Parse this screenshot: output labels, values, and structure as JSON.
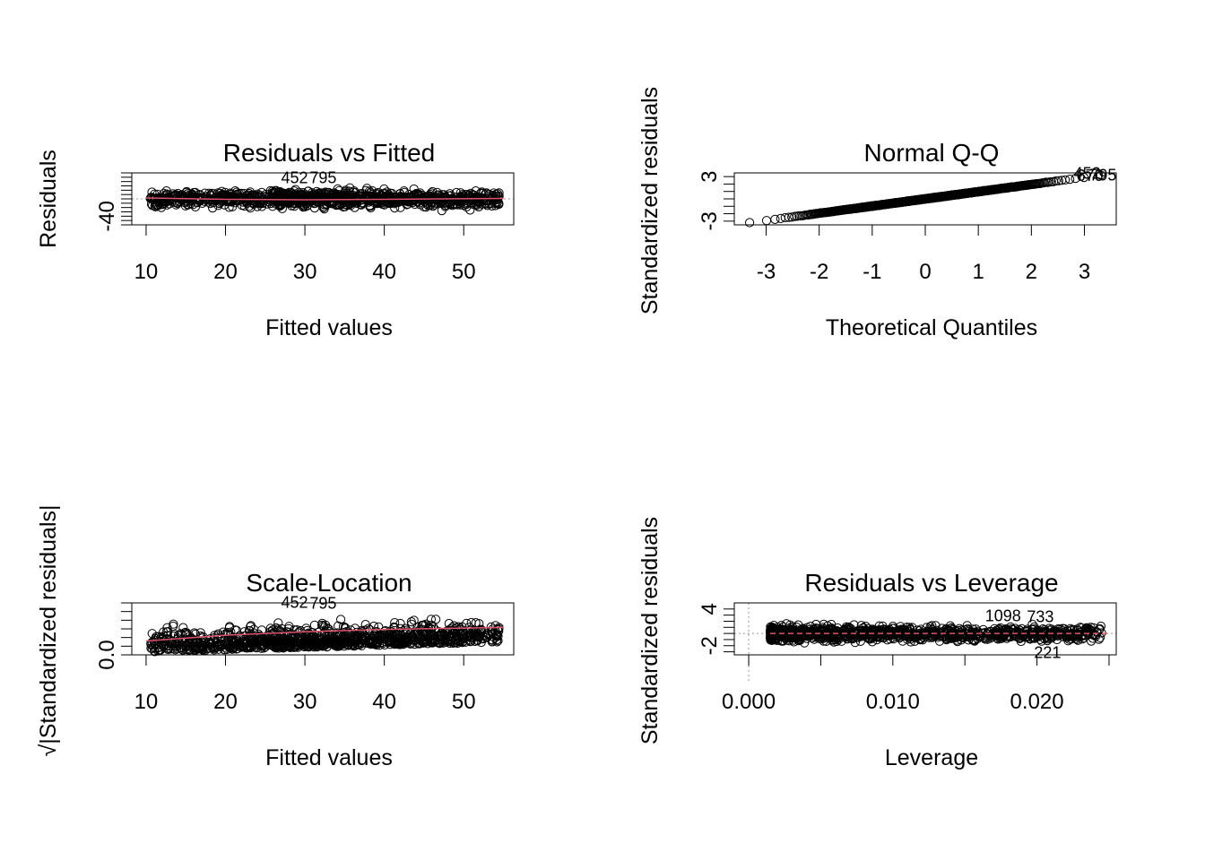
{
  "chart_data": [
    {
      "type": "scatter",
      "title": "Residuals vs Fitted",
      "xlabel": "Fitted values",
      "ylabel": "Residuals",
      "xlim": [
        8.2,
        56.3
      ],
      "ylim": [
        -60,
        60
      ],
      "xticks": [
        10,
        20,
        30,
        40,
        50
      ],
      "xtick_labels": [
        "10",
        "20",
        "30",
        "40",
        "50"
      ],
      "yticks": [
        -60,
        -50,
        -40,
        -30,
        -20,
        -10,
        0,
        10,
        20,
        30,
        40,
        50,
        60
      ],
      "ytick_labels": [
        "",
        "",
        "-40",
        "",
        "",
        "",
        "",
        "",
        "",
        "",
        "",
        "",
        ""
      ],
      "x_range": [
        10.5,
        54.5
      ],
      "y_range": [
        -50,
        50
      ],
      "n_points": 1100,
      "reference_line": {
        "y": 0,
        "style": "dotted",
        "color": "#999999"
      },
      "smooth_color": "#DF536B",
      "smooth": {
        "x": [
          10,
          20,
          30,
          40,
          55
        ],
        "y": [
          2,
          -1,
          -2,
          -1,
          1
        ]
      },
      "labels": [
        {
          "text": "452",
          "x": 27,
          "y": 47
        },
        {
          "text": "795",
          "x": 30.6,
          "y": 47
        }
      ]
    },
    {
      "type": "scatter",
      "title": "Normal Q-Q",
      "xlabel": "Theoretical Quantiles",
      "ylabel": "Standardized residuals",
      "xlim": [
        -3.6,
        3.6
      ],
      "ylim": [
        -3.5,
        3.5
      ],
      "xticks": [
        -3,
        -2,
        -1,
        0,
        1,
        2,
        3
      ],
      "xtick_labels": [
        "-3",
        "-2",
        "-1",
        "0",
        "1",
        "2",
        "3"
      ],
      "yticks": [
        -3,
        -2,
        -1,
        0,
        1,
        2,
        3
      ],
      "ytick_labels": [
        "-3",
        "",
        "",
        "",
        "",
        "",
        "3"
      ],
      "x_range": [
        -3.3,
        3.3
      ],
      "y_range": [
        -3.2,
        3.1
      ],
      "n_points": 1100,
      "labels": [
        {
          "text": "452",
          "x": 2.8,
          "y": 3.3
        },
        {
          "text": "795",
          "x": 3.1,
          "y": 3.1
        },
        {
          "text": "670",
          "x": 2.85,
          "y": 3.0
        }
      ]
    },
    {
      "type": "scatter",
      "title": "Scale-Location",
      "xlabel": "Fitted values",
      "ylabel": "√|Standardized residuals|",
      "xlim": [
        8.2,
        56.3
      ],
      "ylim": [
        0,
        1.8
      ],
      "xticks": [
        10,
        20,
        30,
        40,
        50
      ],
      "xtick_labels": [
        "10",
        "20",
        "30",
        "40",
        "50"
      ],
      "yticks": [
        0,
        0.3,
        0.6,
        0.9,
        1.2,
        1.5,
        1.8
      ],
      "ytick_labels": [
        "0.0",
        "",
        "",
        "",
        "",
        "",
        ""
      ],
      "x_range": [
        10.5,
        54.5
      ],
      "y_range": [
        0.05,
        1.7
      ],
      "n_points": 1100,
      "smooth_color": "#DF536B",
      "smooth": {
        "x": [
          10,
          20,
          30,
          40,
          55
        ],
        "y": [
          0.48,
          0.68,
          0.8,
          0.88,
          0.95
        ]
      },
      "labels": [
        {
          "text": "452",
          "x": 27,
          "y": 1.78
        },
        {
          "text": "795",
          "x": 30.6,
          "y": 1.76
        }
      ]
    },
    {
      "type": "scatter",
      "title": "Residuals vs Leverage",
      "xlabel": "Leverage",
      "ylabel": "Standardized residuals",
      "xlim": [
        -0.001,
        0.0255
      ],
      "ylim": [
        -3.5,
        5
      ],
      "xticks": [
        0,
        0.005,
        0.01,
        0.015,
        0.02,
        0.025
      ],
      "xtick_labels": [
        "0.000",
        "",
        "0.010",
        "",
        "0.020",
        ""
      ],
      "yticks": [
        -3,
        -2,
        -1,
        0,
        1,
        2,
        3,
        4
      ],
      "ytick_labels": [
        "",
        "-2",
        "",
        "",
        "",
        "",
        "",
        "4"
      ],
      "x_range": [
        0.0015,
        0.0245
      ],
      "y_range": [
        -3.2,
        3.3
      ],
      "n_points": 1100,
      "reference_lines": [
        {
          "x": 0,
          "style": "dotted",
          "color": "#999999"
        },
        {
          "y": 0,
          "style": "dotted",
          "color": "#999999"
        }
      ],
      "smooth_color": "#DF536B",
      "labels": [
        {
          "text": "1098",
          "x": 0.0164,
          "y": 2.7
        },
        {
          "text": "733",
          "x": 0.0193,
          "y": 2.6
        },
        {
          "text": "221",
          "x": 0.0198,
          "y": -3.3
        }
      ]
    }
  ]
}
